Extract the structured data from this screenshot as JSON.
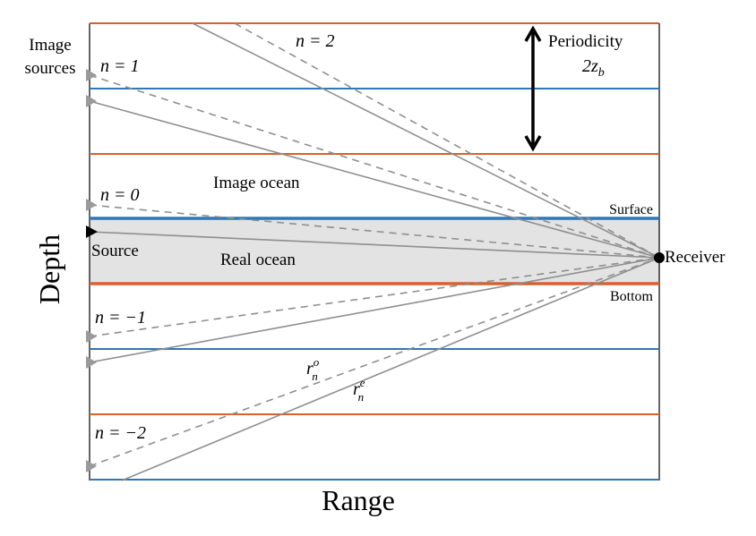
{
  "labels": {
    "image_sources": [
      "Image",
      "sources"
    ],
    "periodicity": "Periodicity",
    "period_value": "2z",
    "period_sub": "b",
    "image_ocean": "Image ocean",
    "real_ocean": "Real ocean",
    "surface": "Surface",
    "bottom": "Bottom",
    "source": "Source",
    "receiver": "Receiver",
    "depth_axis": "Depth",
    "range_axis": "Range",
    "n2": "n = 2",
    "n1": "n = 1",
    "n0": "n = 0",
    "nm1": "n = −1",
    "nm2": "n = −2",
    "r_odd": "r",
    "r_odd_sup": "o",
    "r_odd_sub": "n",
    "r_even": "r",
    "r_even_sup": "e",
    "r_even_sub": "n"
  },
  "colors": {
    "surface_line": "#2f78b5",
    "bottom_line": "#d9602a",
    "real_ocean_fill": "#e3e3e3",
    "ray": "#8f8f8f",
    "image_source_marker": "#9a9a9a",
    "source_marker": "#000000"
  }
}
